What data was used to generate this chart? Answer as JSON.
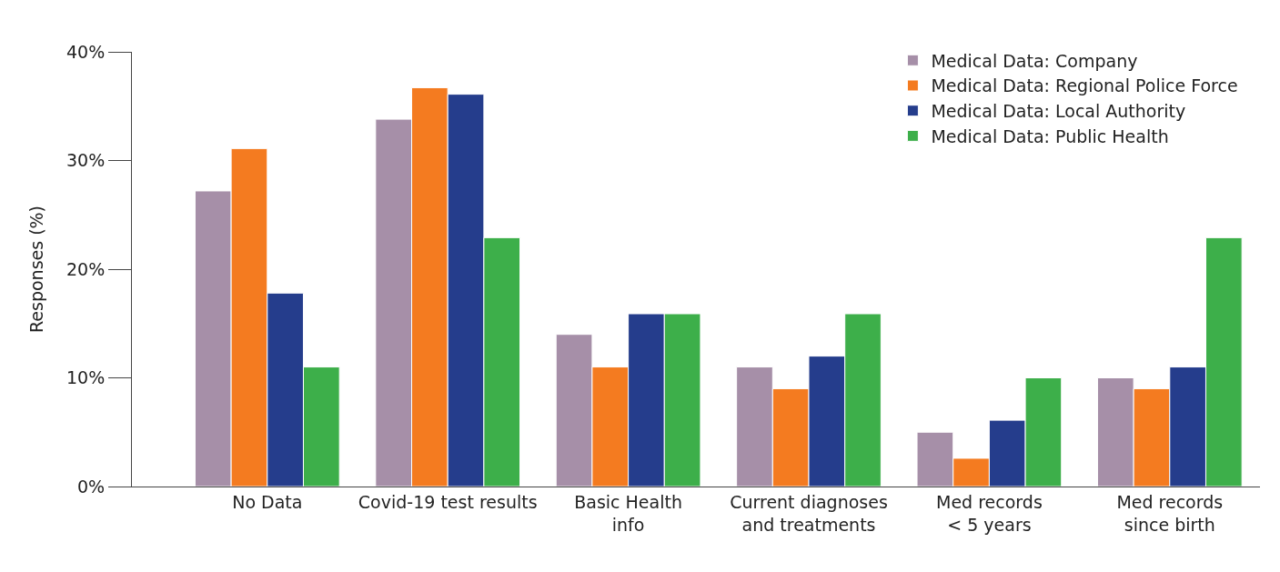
{
  "chart_data": {
    "type": "bar",
    "ylabel": "Responses (%)",
    "categories": [
      "No Data",
      "Covid-19 test results",
      "Basic Health\ninfo",
      "Current diagnoses\nand treatments",
      "Med records\n< 5 years",
      "Med records\nsince birth"
    ],
    "series": [
      {
        "name": "Medical Data: Company",
        "color": "#a68fa8",
        "values": [
          27.2,
          33.8,
          14,
          11,
          5,
          10
        ]
      },
      {
        "name": "Medical Data: Regional Police Force",
        "color": "#f47b20",
        "values": [
          31.1,
          36.7,
          11,
          9,
          2.6,
          9
        ]
      },
      {
        "name": "Medical Data: Local Authority",
        "color": "#253d8c",
        "values": [
          17.8,
          36.1,
          15.9,
          12,
          6.1,
          11
        ]
      },
      {
        "name": "Medical Data: Public Health",
        "color": "#3daf4a",
        "values": [
          11,
          22.9,
          15.9,
          15.9,
          10,
          22.9
        ]
      }
    ],
    "ylim": [
      0,
      40
    ],
    "yticks": [
      {
        "value": 0,
        "label": "0%"
      },
      {
        "value": 10,
        "label": "10%"
      },
      {
        "value": 20,
        "label": "20%"
      },
      {
        "value": 30,
        "label": "30%"
      },
      {
        "value": 40,
        "label": "40%"
      }
    ],
    "legend": "top right"
  }
}
